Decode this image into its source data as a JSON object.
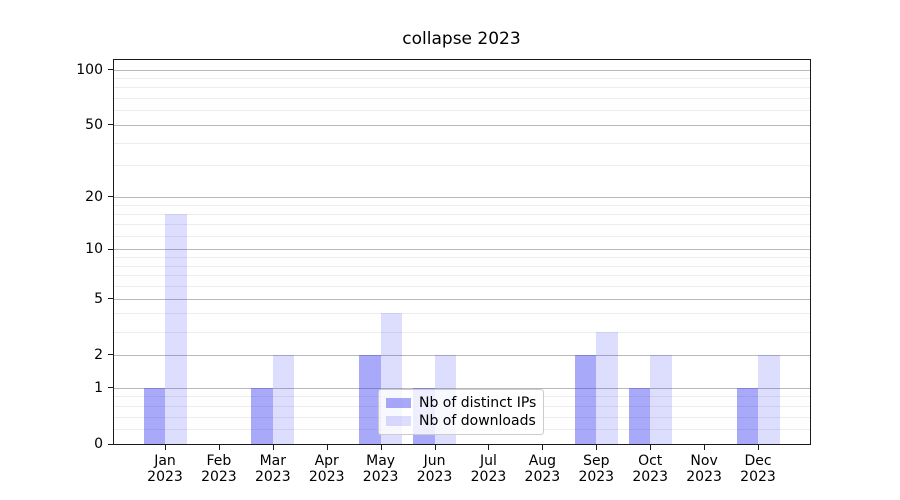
{
  "title": "collapse 2023",
  "chart_data": {
    "type": "bar",
    "title": "collapse 2023",
    "categories": [
      "Jan 2023",
      "Feb 2023",
      "Mar 2023",
      "Apr 2023",
      "May 2023",
      "Jun 2023",
      "Jul 2023",
      "Aug 2023",
      "Sep 2023",
      "Oct 2023",
      "Nov 2023",
      "Dec 2023"
    ],
    "series": [
      {
        "name": "Nb of distinct IPs",
        "values": [
          1,
          0,
          1,
          0,
          2,
          1,
          0,
          0,
          2,
          1,
          0,
          1
        ],
        "color": "rgba(64,64,244,0.45)",
        "approx_hex": "#a9a9f7"
      },
      {
        "name": "Nb of downloads",
        "values": [
          16,
          0,
          2,
          0,
          4,
          2,
          0,
          0,
          3,
          2,
          0,
          2
        ],
        "color": "rgba(64,64,244,0.18)",
        "approx_hex": "#dcdcf8"
      }
    ],
    "xlabel": "",
    "ylabel": "",
    "yscale": "log1p",
    "ylim": [
      0,
      114
    ],
    "yticks": [
      0,
      1,
      2,
      5,
      10,
      20,
      50,
      100
    ],
    "minor_yticks": [
      0.2,
      0.4,
      0.6,
      0.8,
      3,
      4,
      6,
      7,
      8,
      9,
      12,
      14,
      16,
      18,
      30,
      40,
      60,
      70,
      80,
      90
    ],
    "grid": true,
    "legend_position": "lower center"
  },
  "colors": {
    "major_grid": "#b8b8b8",
    "minor_grid": "#ececec",
    "spine": "#1a1a1a",
    "legend_border": "#cccccc",
    "legend_bg": "rgba(255,255,255,0.8)"
  }
}
